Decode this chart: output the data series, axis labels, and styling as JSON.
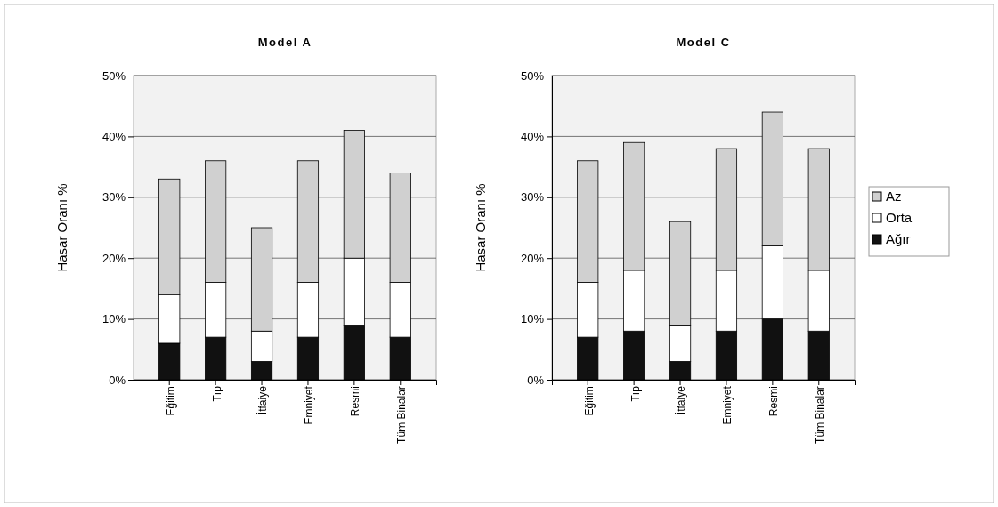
{
  "chart_data": [
    {
      "type": "bar",
      "title": "Model A",
      "ylabel": "Hasar Oranı %",
      "categories": [
        "Eğitim",
        "Tıp",
        "İtfaiye",
        "Emniyet",
        "Resmi",
        "Tüm Binalar"
      ],
      "stacked": true,
      "ylim": [
        0,
        50
      ],
      "yticks": [
        {
          "value": 0,
          "label": "0%"
        },
        {
          "value": 10,
          "label": "10%"
        },
        {
          "value": 20,
          "label": "20%"
        },
        {
          "value": 30,
          "label": "30%"
        },
        {
          "value": 40,
          "label": "40%"
        },
        {
          "value": 50,
          "label": "50%"
        }
      ],
      "grid": "y",
      "legend": false,
      "series": [
        {
          "color": "#111111",
          "values": [
            6,
            7,
            3,
            7,
            9,
            7
          ]
        },
        {
          "color": "#ffffff",
          "values": [
            8,
            9,
            5,
            9,
            11,
            9
          ]
        },
        {
          "color": "#d0d0d0",
          "values": [
            19,
            20,
            17,
            20,
            21,
            18
          ]
        }
      ]
    },
    {
      "type": "bar",
      "title": "Model C",
      "ylabel": "Hasar Oranı %",
      "categories": [
        "Eğitim",
        "Tıp",
        "İtfaiye",
        "Emniyet",
        "Resmi",
        "Tüm Binalar"
      ],
      "stacked": true,
      "ylim": [
        0,
        50
      ],
      "yticks": [
        {
          "value": 0,
          "label": "0%"
        },
        {
          "value": 10,
          "label": "10%"
        },
        {
          "value": 20,
          "label": "20%"
        },
        {
          "value": 30,
          "label": "30%"
        },
        {
          "value": 40,
          "label": "40%"
        },
        {
          "value": 50,
          "label": "50%"
        }
      ],
      "grid": "y",
      "legend": "right",
      "series": [
        {
          "name": "Ağır",
          "color": "#111111",
          "values": [
            7,
            8,
            3,
            8,
            10,
            8
          ]
        },
        {
          "name": "Orta",
          "color": "#ffffff",
          "values": [
            9,
            10,
            6,
            10,
            12,
            10
          ]
        },
        {
          "name": "Az",
          "color": "#d0d0d0",
          "values": [
            20,
            21,
            17,
            20,
            22,
            20
          ]
        }
      ]
    }
  ]
}
